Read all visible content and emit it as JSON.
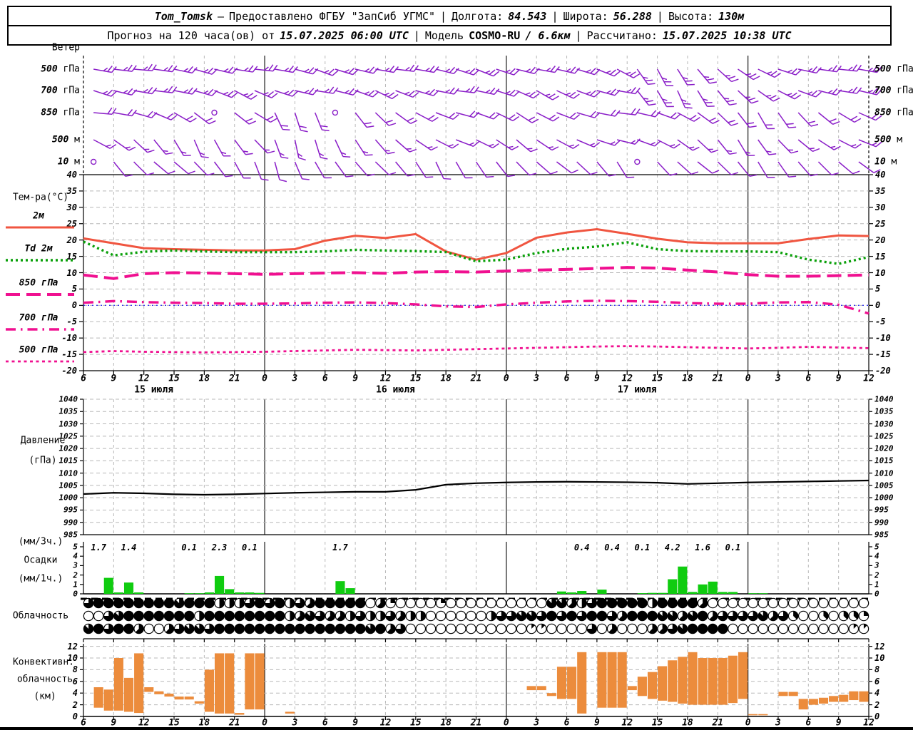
{
  "header": {
    "station": "Tom_Tomsk",
    "dash": "—",
    "provider": "Предоставлено ФГБУ \"ЗапСиб УГМС\"",
    "sep": "|",
    "lon_label": "Долгота:",
    "lon": "84.543",
    "lat_label": "Широта:",
    "lat": "56.288",
    "alt_label": "Высота:",
    "alt": "130м",
    "line2_prefix": "Прогноз на 120 часа(ов) от",
    "run_time": "15.07.2025 06:00 UTC",
    "model_label": "Модель",
    "model_name": "COSMO-RU",
    "model_res": "/ 6.6км",
    "calc_label": "Рассчитано:",
    "calc_time": "15.07.2025 10:38 UTC"
  },
  "chart_data": {
    "type": "meteogram",
    "x_axis": {
      "start_label": "15.07.2025 06:00 UTC",
      "step_hours": 3,
      "hour_labels": [
        "6",
        "9",
        "12",
        "15",
        "18",
        "21",
        "0",
        "3",
        "6",
        "9",
        "12",
        "15",
        "18",
        "21",
        "0",
        "3",
        "6",
        "9",
        "12",
        "15",
        "18",
        "21",
        "0",
        "3",
        "6",
        "9",
        "12"
      ],
      "day_labels": [
        {
          "label": "15 июля",
          "h": 6
        },
        {
          "label": "16 июля",
          "h": 30
        },
        {
          "label": "17 июля",
          "h": 54
        }
      ]
    },
    "wind": {
      "title": "Ветер",
      "barb_color": "#8a1ec8",
      "levels": [
        {
          "name": "500 гПа",
          "dirs": [
            100,
            97,
            95,
            98,
            102,
            106,
            103,
            99,
            96,
            100,
            105,
            110,
            107,
            103,
            100,
            97,
            100,
            104,
            108,
            112,
            108,
            104,
            100,
            103,
            107,
            112,
            118,
            145,
            152,
            148,
            140,
            132,
            124,
            116,
            108,
            102,
            98,
            96,
            100
          ]
        },
        {
          "name": "700 гПа",
          "dirs": [
            108,
            104,
            100,
            97,
            101,
            106,
            112,
            118,
            113,
            108,
            103,
            99,
            104,
            110,
            116,
            111,
            106,
            101,
            97,
            102,
            108,
            114,
            120,
            115,
            110,
            105,
            100,
            142,
            150,
            156,
            149,
            141,
            133,
            125,
            117,
            110,
            104,
            99,
            103
          ]
        },
        {
          "name": "850 гПа",
          "dirs": [
            95,
            100,
            106,
            113,
            120,
            127,
            null,
            128,
            121,
            155,
            162,
            158,
            null,
            142,
            134,
            126,
            118,
            111,
            105,
            110,
            116,
            123,
            117,
            111,
            106,
            101,
            97,
            103,
            110,
            118,
            126,
            134,
            142,
            150,
            145,
            137,
            129,
            121,
            114
          ]
        },
        {
          "name": "500 м",
          "dirs": [
            118,
            125,
            133,
            141,
            149,
            157,
            151,
            143,
            136,
            160,
            168,
            163,
            155,
            147,
            139,
            131,
            124,
            117,
            111,
            116,
            123,
            130,
            124,
            118,
            113,
            108,
            104,
            110,
            117,
            125,
            133,
            141,
            149,
            144,
            136,
            129,
            123,
            117,
            112
          ]
        },
        {
          "name": "10 м",
          "dirs": [
            null,
            141,
            135,
            130,
            130,
            136,
            143,
            151,
            159,
            165,
            157,
            150,
            144,
            139,
            134,
            140,
            147,
            155,
            150,
            146,
            142,
            136,
            131,
            127,
            133,
            140,
            148,
            null,
            137,
            132,
            128,
            134,
            141,
            149,
            145,
            139,
            135,
            130,
            126
          ]
        }
      ]
    },
    "temperature": {
      "title": "Тем-ра(°C)",
      "yticks": [
        40,
        35,
        30,
        25,
        20,
        15,
        10,
        5,
        0,
        -5,
        -10,
        -15,
        -20
      ],
      "zero_line_color": "#3333ee",
      "series": [
        {
          "name": "2м",
          "color": "#f05540",
          "dash": "solid",
          "values": [
            20.5,
            19.0,
            17.5,
            17.2,
            17.0,
            16.8,
            16.8,
            17.2,
            19.8,
            21.3,
            20.6,
            21.8,
            16.5,
            14.0,
            16.0,
            20.7,
            22.3,
            23.3,
            21.9,
            20.4,
            19.3,
            19.0,
            19.0,
            19.0,
            20.3,
            21.4,
            21.2
          ]
        },
        {
          "name": "Td 2м",
          "color": "#0aa00a",
          "dash": "dotted",
          "values": [
            19.5,
            15.3,
            16.4,
            16.8,
            16.5,
            16.3,
            16.3,
            16.3,
            16.5,
            17.0,
            16.8,
            16.6,
            16.3,
            13.5,
            14.0,
            16.0,
            17.3,
            18.0,
            19.3,
            17.2,
            16.6,
            16.5,
            16.5,
            16.3,
            14.0,
            12.7,
            14.8
          ]
        },
        {
          "name": "850 гПа",
          "color": "#f01090",
          "dash": "longdash",
          "values": [
            9.3,
            8.2,
            9.7,
            10.0,
            9.9,
            9.7,
            9.5,
            9.7,
            9.9,
            10.0,
            9.8,
            10.2,
            10.3,
            10.2,
            10.5,
            10.8,
            11.0,
            11.3,
            11.6,
            11.4,
            10.8,
            10.2,
            9.4,
            8.9,
            8.9,
            9.1,
            9.3
          ]
        },
        {
          "name": "700 гПа",
          "color": "#f01090",
          "dash": "dashdot",
          "values": [
            0.8,
            1.3,
            1.0,
            0.8,
            0.7,
            0.5,
            0.5,
            0.6,
            0.8,
            0.9,
            0.7,
            0.3,
            -0.3,
            -0.5,
            0.3,
            0.8,
            1.2,
            1.4,
            1.3,
            1.1,
            0.7,
            0.5,
            0.5,
            0.9,
            1.0,
            0.2,
            -2.5
          ]
        },
        {
          "name": "500 гПа",
          "color": "#f01090",
          "dash": "shortdash",
          "values": [
            -14.3,
            -14.0,
            -14.2,
            -14.3,
            -14.4,
            -14.3,
            -14.2,
            -14.0,
            -13.8,
            -13.6,
            -13.7,
            -13.8,
            -13.6,
            -13.4,
            -13.2,
            -13.0,
            -12.8,
            -12.6,
            -12.5,
            -12.6,
            -12.8,
            -13.0,
            -13.2,
            -13.0,
            -12.7,
            -12.9,
            -13.1
          ]
        }
      ]
    },
    "pressure": {
      "title_lines": [
        "Давление",
        "(гПа)"
      ],
      "yticks": [
        1040,
        1035,
        1030,
        1025,
        1020,
        1015,
        1010,
        1005,
        1000,
        995,
        990,
        985
      ],
      "color": "#000000",
      "values": [
        1001.5,
        1002.0,
        1001.8,
        1001.4,
        1001.2,
        1001.4,
        1001.7,
        1002.0,
        1002.2,
        1002.4,
        1002.4,
        1003.2,
        1005.3,
        1005.9,
        1006.2,
        1006.4,
        1006.5,
        1006.4,
        1006.3,
        1006.1,
        1005.6,
        1005.9,
        1006.2,
        1006.4,
        1006.6,
        1006.8,
        1007.0
      ]
    },
    "precipitation": {
      "left_labels": [
        "(мм/3ч.)",
        "Осадки",
        "(мм/1ч.)"
      ],
      "yticks": [
        5,
        4,
        3,
        2,
        1,
        0
      ],
      "bar_color": "#10cc10",
      "sum_labels_3h": [
        [
          1.5,
          "1.7"
        ],
        [
          4.5,
          "1.4"
        ],
        [
          10.5,
          "0.1"
        ],
        [
          13.5,
          "2.3"
        ],
        [
          16.5,
          "0.1"
        ],
        [
          25.5,
          "1.7"
        ],
        [
          49.5,
          "0.4"
        ],
        [
          52.5,
          "0.4"
        ],
        [
          55.5,
          "0.1"
        ],
        [
          58.5,
          "4.2"
        ],
        [
          61.5,
          "1.6"
        ],
        [
          64.5,
          "0.1"
        ]
      ],
      "bars_1h": [
        [
          2,
          1.7
        ],
        [
          3,
          0.15
        ],
        [
          4,
          1.2
        ],
        [
          5,
          0.15
        ],
        [
          10,
          0.06
        ],
        [
          11,
          0.06
        ],
        [
          12,
          0.15
        ],
        [
          13,
          1.9
        ],
        [
          14,
          0.5
        ],
        [
          15,
          0.15
        ],
        [
          16,
          0.15
        ],
        [
          17,
          0.1
        ],
        [
          25,
          1.35
        ],
        [
          26,
          0.6
        ],
        [
          47,
          0.25
        ],
        [
          48,
          0.15
        ],
        [
          49,
          0.3
        ],
        [
          51,
          0.45
        ],
        [
          55,
          0.07
        ],
        [
          56,
          0.1
        ],
        [
          57,
          0.1
        ],
        [
          58,
          1.55
        ],
        [
          59,
          2.9
        ],
        [
          60,
          0.2
        ],
        [
          61,
          1.0
        ],
        [
          62,
          1.3
        ],
        [
          63,
          0.2
        ],
        [
          64,
          0.2
        ],
        [
          66,
          0.06
        ],
        [
          67,
          0.06
        ]
      ]
    },
    "cloudiness": {
      "title": "Облачность",
      "rows_oktas": [
        "688888888788844468684658888805200002000000000077546888884888850000000000000000",
        "006788888884888888884576554644654400000046677686868865888775785666675630030332",
        "786885005677688888888888888878560000000000001100006050005567888800000000000011"
      ]
    },
    "convective_clouds": {
      "title_lines": [
        "Конвективн.",
        "облачность",
        "(км)"
      ],
      "yticks": [
        12,
        10,
        8,
        6,
        4,
        2,
        0
      ],
      "bar_color": "#ec8c3c",
      "bars": [
        [
          1,
          1.5,
          5.0
        ],
        [
          2,
          1.0,
          4.6
        ],
        [
          3,
          1.0,
          10.0
        ],
        [
          4,
          0.8,
          6.6
        ],
        [
          5,
          0.6,
          10.8
        ],
        [
          6,
          4.2,
          5.0
        ],
        [
          7,
          3.8,
          4.3
        ],
        [
          8,
          3.4,
          3.9
        ],
        [
          9,
          2.9,
          3.4
        ],
        [
          10,
          2.9,
          3.4
        ],
        [
          11,
          2.2,
          2.6
        ],
        [
          12,
          0.8,
          8.0
        ],
        [
          13,
          0.5,
          10.8
        ],
        [
          14,
          0.5,
          10.8
        ],
        [
          15,
          0.3,
          0.6
        ],
        [
          16,
          1.2,
          10.8
        ],
        [
          17,
          1.2,
          10.8
        ],
        [
          20,
          0.5,
          0.8
        ],
        [
          44,
          4.5,
          5.2
        ],
        [
          45,
          4.5,
          5.2
        ],
        [
          46,
          3.5,
          4.0
        ],
        [
          47,
          3.0,
          8.5
        ],
        [
          48,
          3.0,
          8.5
        ],
        [
          49,
          0.5,
          11.0
        ],
        [
          51,
          1.5,
          11.0
        ],
        [
          52,
          1.5,
          11.0
        ],
        [
          53,
          1.5,
          11.0
        ],
        [
          54,
          4.5,
          5.2
        ],
        [
          55,
          3.5,
          6.8
        ],
        [
          56,
          3.0,
          7.6
        ],
        [
          57,
          2.7,
          8.6
        ],
        [
          58,
          2.5,
          9.6
        ],
        [
          59,
          2.2,
          10.2
        ],
        [
          60,
          2.0,
          11.0
        ],
        [
          61,
          2.0,
          10.0
        ],
        [
          62,
          2.0,
          10.0
        ],
        [
          63,
          2.0,
          10.0
        ],
        [
          64,
          2.3,
          10.4
        ],
        [
          65,
          3.0,
          11.0
        ],
        [
          66,
          0.2,
          0.4
        ],
        [
          67,
          0.2,
          0.4
        ],
        [
          69,
          3.5,
          4.2
        ],
        [
          70,
          3.5,
          4.2
        ],
        [
          71,
          1.2,
          3.0
        ],
        [
          72,
          2.0,
          3.0
        ],
        [
          73,
          2.2,
          3.2
        ],
        [
          74,
          2.5,
          3.5
        ],
        [
          75,
          2.5,
          3.7
        ],
        [
          76,
          2.8,
          4.3
        ],
        [
          77,
          2.5,
          4.3
        ]
      ]
    }
  }
}
